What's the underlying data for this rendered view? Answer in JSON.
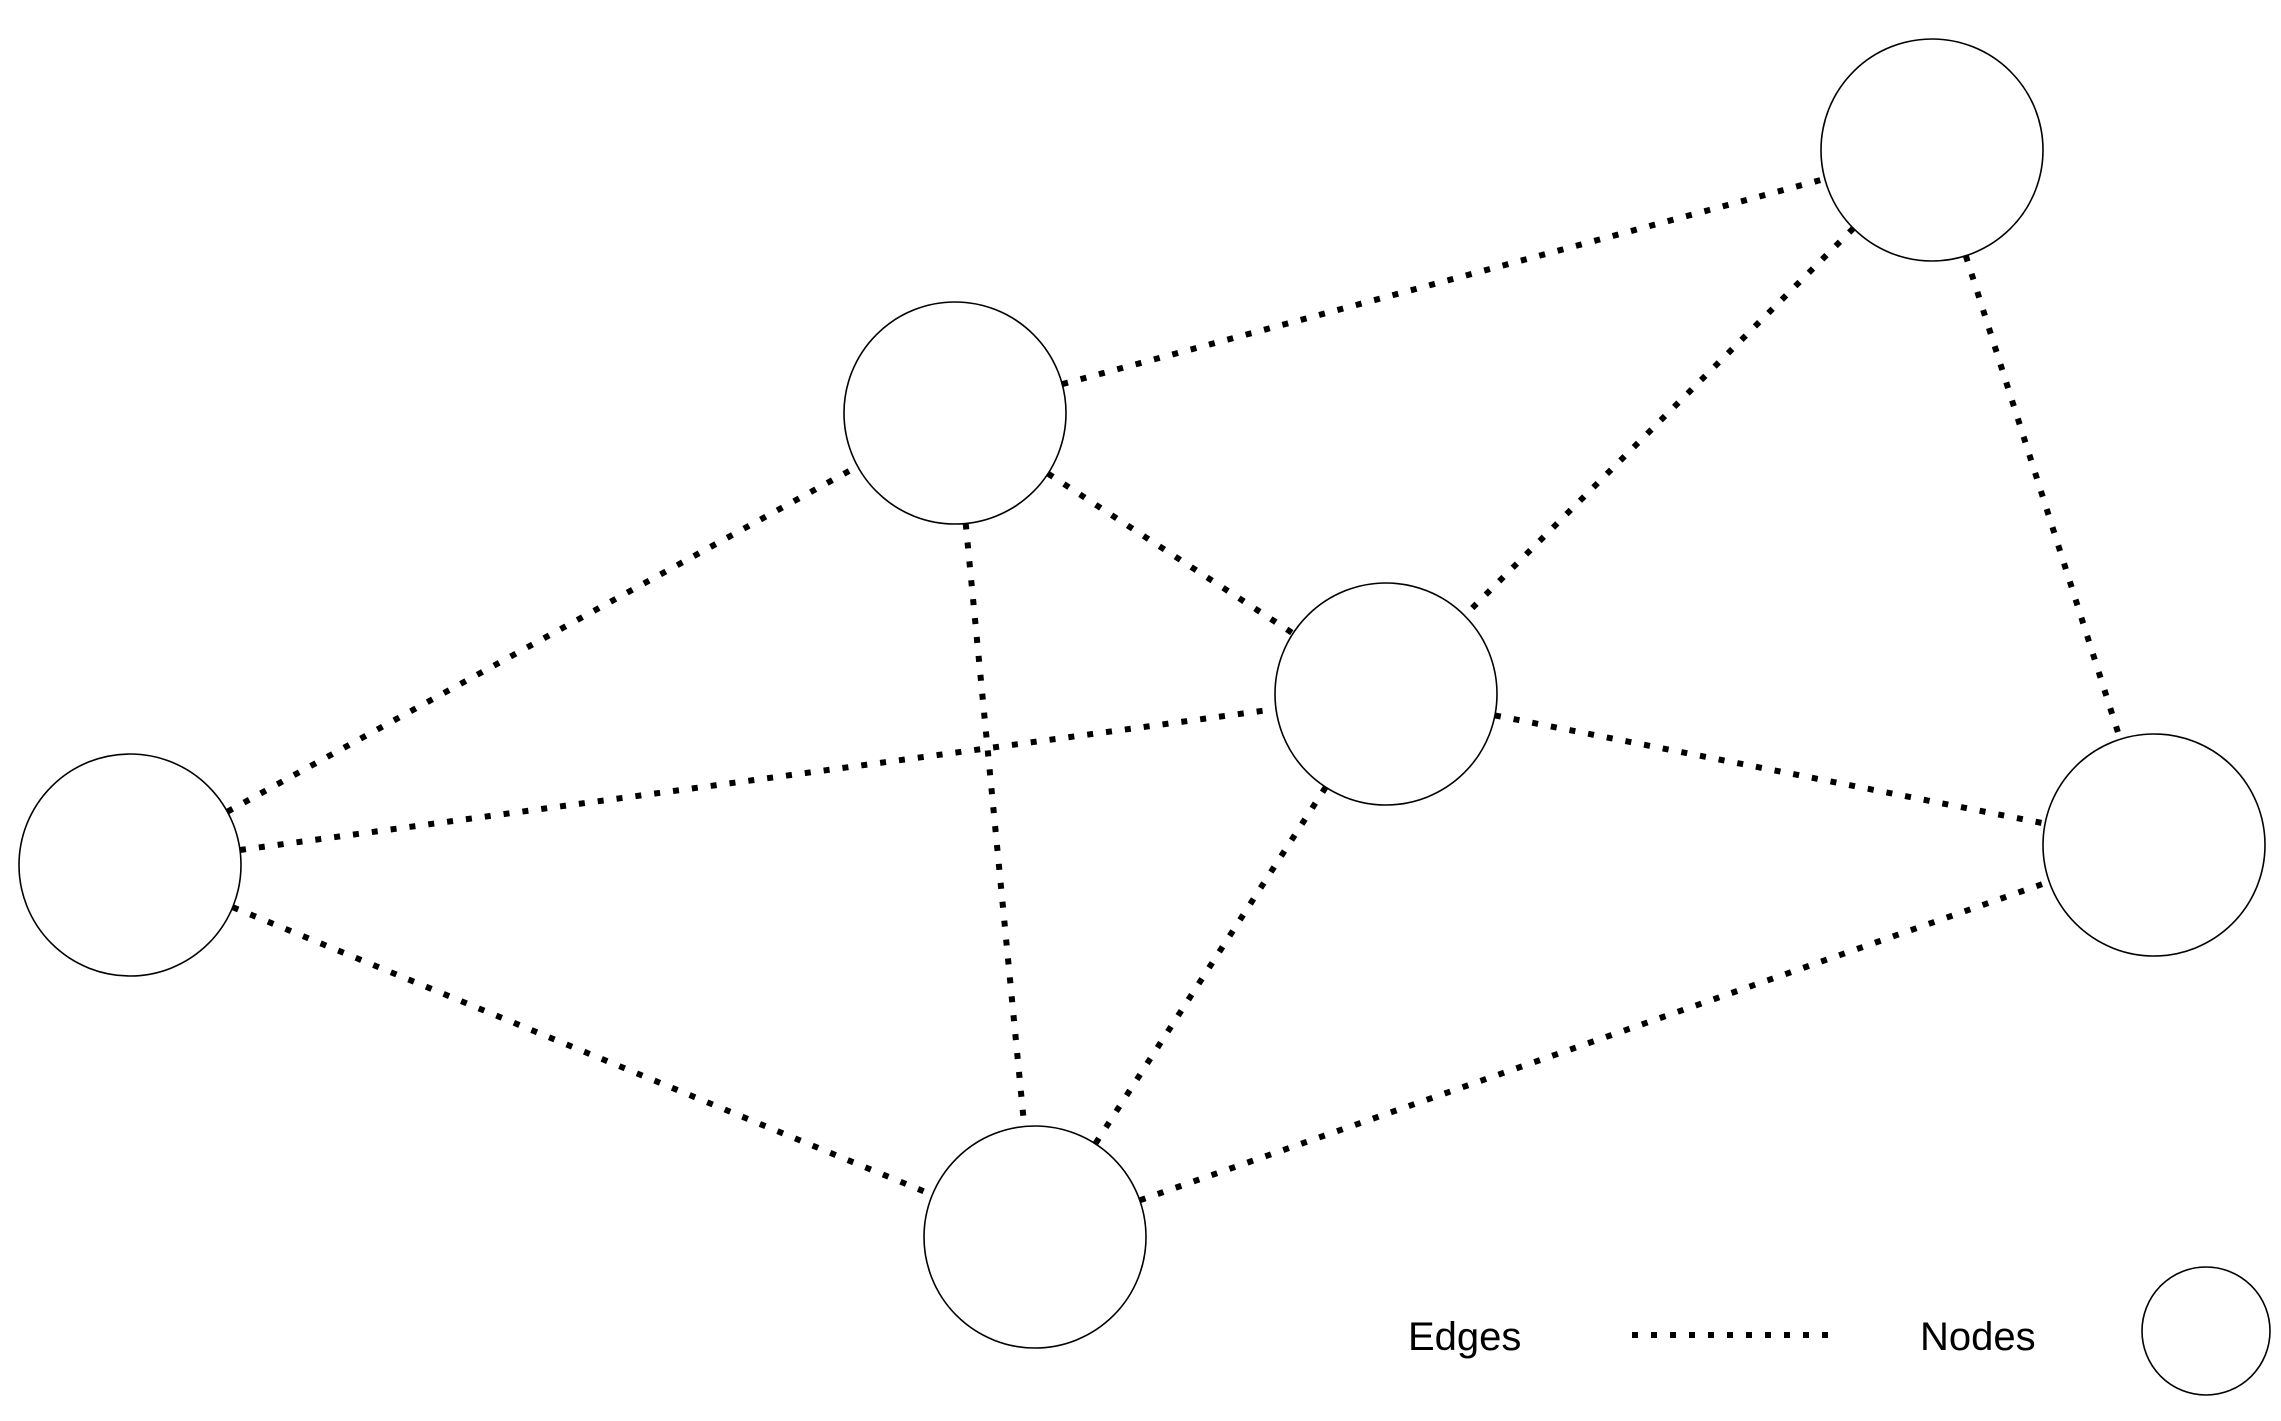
{
  "legend": {
    "edges_label": "Edges",
    "nodes_label": "Nodes"
  },
  "graph": {
    "nodes": [
      "n1",
      "n2",
      "n3",
      "n4",
      "n5",
      "n6"
    ],
    "edges": [
      [
        "n2",
        "n3"
      ],
      [
        "n2",
        "n4"
      ],
      [
        "n2",
        "n5"
      ],
      [
        "n1",
        "n2"
      ],
      [
        "n1",
        "n4"
      ],
      [
        "n1",
        "n5"
      ],
      [
        "n3",
        "n4"
      ],
      [
        "n3",
        "n6"
      ],
      [
        "n4",
        "n5"
      ],
      [
        "n4",
        "n6"
      ],
      [
        "n5",
        "n6"
      ]
    ]
  },
  "colors": {
    "stroke": "#000000",
    "background": "#ffffff"
  }
}
